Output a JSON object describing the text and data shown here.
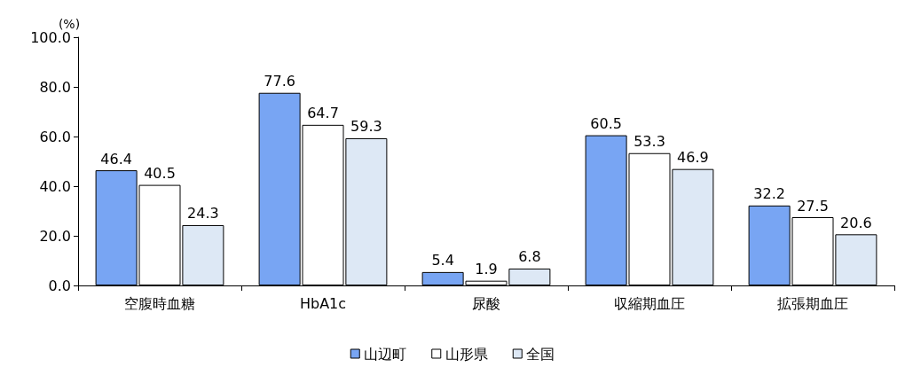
{
  "chart_data": {
    "type": "bar",
    "ylabel": "(%)",
    "categories": [
      "空腹時血糖",
      "HbA1c",
      "尿酸",
      "収縮期血圧",
      "拡張期血圧"
    ],
    "series": [
      {
        "name": "山辺町",
        "color": "#78a5f3",
        "values": [
          46.4,
          77.6,
          5.4,
          60.5,
          32.2
        ]
      },
      {
        "name": "山形県",
        "color": "#ffffff",
        "values": [
          40.5,
          64.7,
          1.9,
          53.3,
          27.5
        ]
      },
      {
        "name": "全国",
        "color": "#dde8f5",
        "values": [
          24.3,
          59.3,
          6.8,
          46.9,
          20.6
        ]
      }
    ],
    "ylim": [
      0,
      100
    ],
    "yticks": [
      {
        "value": 0,
        "label": "0.0"
      },
      {
        "value": 20,
        "label": "20.0"
      },
      {
        "value": 40,
        "label": "40.0"
      },
      {
        "value": 60,
        "label": "60.0"
      },
      {
        "value": 80,
        "label": "80.0"
      },
      {
        "value": 100,
        "label": "100.0"
      }
    ],
    "grid": false,
    "legend": "bottom",
    "data_labels": true
  }
}
